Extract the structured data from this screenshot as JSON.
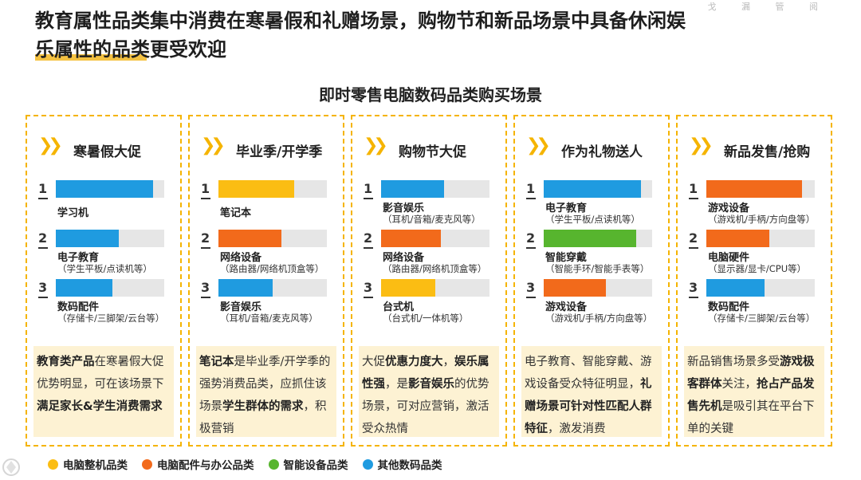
{
  "title_line1": "教育属性品类集中消费在寒暑假和礼赠场景，购物节和新品场景中具备休闲娱",
  "title_line2": "乐属性的品类更受欢迎",
  "faint_text": "戈  漏  管  阅",
  "subtitle": "即时零售电脑数码品类购买场景",
  "colors": {
    "yellow": "#fbbd13",
    "orange": "#f26a1b",
    "green": "#57b52e",
    "blue": "#1f9be0",
    "accent": "#f5b400"
  },
  "columns": [
    {
      "heading": "寒暑假大促",
      "items": [
        {
          "rank": "1",
          "name": "学习机",
          "sub": "",
          "color": "blue",
          "fill": 0.9
        },
        {
          "rank": "2",
          "name": "电子教育",
          "sub": "（学生平板/点读机等）",
          "color": "blue",
          "fill": 0.58
        },
        {
          "rank": "3",
          "name": "数码配件",
          "sub": "（存储卡/三脚架/云台等）",
          "color": "blue",
          "fill": 0.52
        }
      ],
      "note": [
        {
          "t": "教育类产品",
          "b": true
        },
        {
          "t": "在寒暑假大促优势明显，可在该场景下",
          "b": false
        },
        {
          "t": "满足家长&学生消费需求",
          "b": true
        }
      ]
    },
    {
      "heading": "毕业季/开学季",
      "items": [
        {
          "rank": "1",
          "name": "笔记本",
          "sub": "",
          "color": "yellow",
          "fill": 0.7
        },
        {
          "rank": "2",
          "name": "网络设备",
          "sub": "（路由器/网络机顶盒等）",
          "color": "orange",
          "fill": 0.58
        },
        {
          "rank": "3",
          "name": "影音娱乐",
          "sub": "（耳机/音箱/麦克风等）",
          "color": "blue",
          "fill": 0.5
        }
      ],
      "note": [
        {
          "t": "笔记本",
          "b": true
        },
        {
          "t": "是毕业季/开学季的强势消费品类，应抓住该场景",
          "b": false
        },
        {
          "t": "学生群体的需求",
          "b": true
        },
        {
          "t": "，积极营销",
          "b": false
        }
      ]
    },
    {
      "heading": "购物节大促",
      "items": [
        {
          "rank": "1",
          "name": "影音娱乐",
          "sub": "（耳机/音箱/麦克风等）",
          "color": "blue",
          "fill": 0.58
        },
        {
          "rank": "2",
          "name": "网络设备",
          "sub": "（路由器/网络机顶盒等）",
          "color": "orange",
          "fill": 0.55
        },
        {
          "rank": "3",
          "name": "台式机",
          "sub": "（台式机/一体机等）",
          "color": "yellow",
          "fill": 0.5
        }
      ],
      "note": [
        {
          "t": "大促",
          "b": false
        },
        {
          "t": "优惠力度大",
          "b": true
        },
        {
          "t": "，",
          "b": false
        },
        {
          "t": "娱乐属性强",
          "b": true
        },
        {
          "t": "，是",
          "b": false
        },
        {
          "t": "影音娱乐",
          "b": true
        },
        {
          "t": "的优势场景，可对应营销，激活受众热情",
          "b": false
        }
      ]
    },
    {
      "heading": "作为礼物送人",
      "items": [
        {
          "rank": "1",
          "name": "电子教育",
          "sub": "（学生平板/点读机等）",
          "color": "blue",
          "fill": 0.9
        },
        {
          "rank": "2",
          "name": "智能穿戴",
          "sub": "（智能手环/智能手表等）",
          "color": "green",
          "fill": 0.85
        },
        {
          "rank": "3",
          "name": "游戏设备",
          "sub": "（游戏机/手柄/方向盘等）",
          "color": "orange",
          "fill": 0.57
        }
      ],
      "note": [
        {
          "t": "电子教育、智能穿戴、游戏设备受众特征明显，",
          "b": false
        },
        {
          "t": "礼赠场景可针对性匹配人群特征",
          "b": true
        },
        {
          "t": "，激发消费",
          "b": false
        }
      ]
    },
    {
      "heading": "新品发售/抢购",
      "items": [
        {
          "rank": "1",
          "name": "游戏设备",
          "sub": "（游戏机/手柄/方向盘等）",
          "color": "orange",
          "fill": 0.88
        },
        {
          "rank": "2",
          "name": "电脑硬件",
          "sub": "（显示器/显卡/CPU等）",
          "color": "orange",
          "fill": 0.58
        },
        {
          "rank": "3",
          "name": "数码配件",
          "sub": "（存储卡/三脚架/云台等）",
          "color": "blue",
          "fill": 0.54
        }
      ],
      "note": [
        {
          "t": "新品销售场景多受",
          "b": false
        },
        {
          "t": "游戏极客群体",
          "b": true
        },
        {
          "t": "关注，",
          "b": false
        },
        {
          "t": "抢占产品发售先机",
          "b": true
        },
        {
          "t": "是吸引其在平台下单的关键",
          "b": false
        }
      ]
    }
  ],
  "legend": [
    {
      "label": "电脑整机品类",
      "color": "yellow"
    },
    {
      "label": "电脑配件与办公品类",
      "color": "orange"
    },
    {
      "label": "智能设备品类",
      "color": "green"
    },
    {
      "label": "其他数码品类",
      "color": "blue"
    }
  ]
}
